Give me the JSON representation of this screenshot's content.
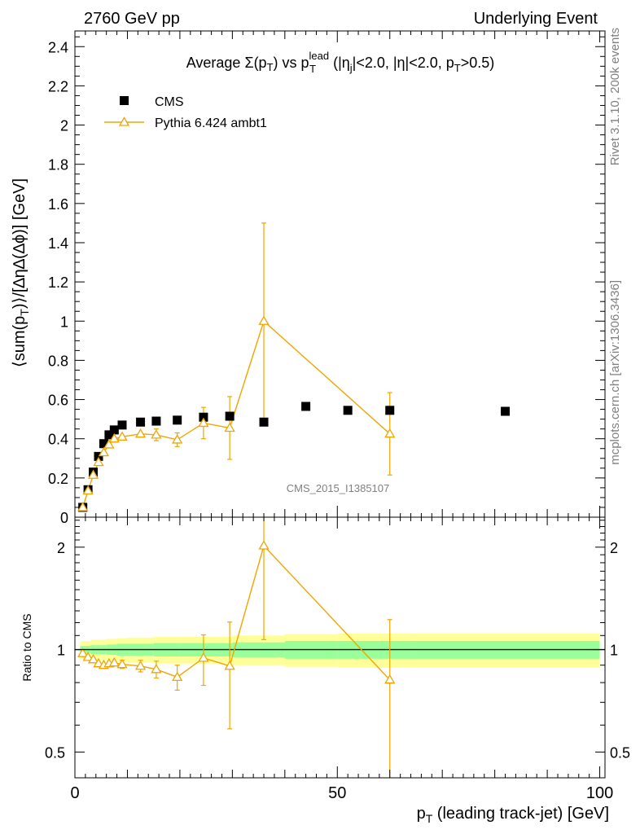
{
  "header": {
    "left": "2760 GeV pp",
    "right": "Underlying Event"
  },
  "side_text": {
    "rivet": "Rivet 3.1.10,  200k events",
    "mcplots": "mcplots.cern.ch [arXiv:1306.3436]"
  },
  "watermark": "CMS_2015_I1385107",
  "colors": {
    "mc": "#f0a500",
    "band_inner": "#99ff99",
    "band_outer": "#ffff99",
    "data": "#000000"
  },
  "chart_data": [
    {
      "type": "scatter",
      "title": {
        "pre": "Average ",
        "sigma": "Σ(p",
        "sigma_sub": "T",
        "sigma_close": ")",
        "vs": " vs p",
        "lead_sup": "lead",
        "lead_sub": "T",
        "eta_open": " (|η",
        "eta_sub": "j",
        "cuts": "|<2.0, |η|<2.0, p",
        "pt_sub": "T",
        "pt_cut": ">0.5)"
      },
      "ylabel": {
        "part1": "⟨sum(p",
        "sub": "T",
        "part2": ")⟩/[∆η∆(∆ϕ)] [GeV]"
      },
      "xlim": [
        0,
        101
      ],
      "ylim": [
        0,
        2.48
      ],
      "y_ticks": [
        {
          "v": 0,
          "label": "0"
        },
        {
          "v": 0.2,
          "label": "0.2"
        },
        {
          "v": 0.4,
          "label": "0.4"
        },
        {
          "v": 0.6,
          "label": "0.6"
        },
        {
          "v": 0.8,
          "label": "0.8"
        },
        {
          "v": 1.0,
          "label": "1"
        },
        {
          "v": 1.2,
          "label": "1.2"
        },
        {
          "v": 1.4,
          "label": "1.4"
        },
        {
          "v": 1.6,
          "label": "1.6"
        },
        {
          "v": 1.8,
          "label": "1.8"
        },
        {
          "v": 2.0,
          "label": "2"
        },
        {
          "v": 2.2,
          "label": "2.2"
        },
        {
          "v": 2.4,
          "label": "2.4"
        }
      ],
      "legend": [
        {
          "name": "CMS",
          "marker": "square"
        },
        {
          "name": "Pythia 6.424 ambt1",
          "marker": "triangle"
        }
      ],
      "series": [
        {
          "name": "CMS",
          "x": [
            1.5,
            2.5,
            3.5,
            4.5,
            5.5,
            6.5,
            7.5,
            9.0,
            12.5,
            15.5,
            19.5,
            24.5,
            29.5,
            36.0,
            44.0,
            52.0,
            60.0,
            82.0
          ],
          "y": [
            0.05,
            0.14,
            0.23,
            0.31,
            0.375,
            0.42,
            0.445,
            0.47,
            0.485,
            0.49,
            0.495,
            0.51,
            0.515,
            0.485,
            0.565,
            0.545,
            0.545,
            0.54
          ]
        },
        {
          "name": "Pythia 6.424 ambt1",
          "x": [
            1.5,
            2.5,
            3.5,
            4.5,
            5.5,
            6.5,
            7.5,
            9.0,
            12.5,
            15.5,
            19.5,
            24.5,
            29.5,
            36.0,
            60.0
          ],
          "y": [
            0.05,
            0.135,
            0.215,
            0.28,
            0.33,
            0.37,
            0.4,
            0.41,
            0.425,
            0.42,
            0.395,
            0.48,
            0.455,
            1.0,
            0.425
          ],
          "err": [
            0.005,
            0.01,
            0.01,
            0.012,
            0.012,
            0.015,
            0.015,
            0.015,
            0.02,
            0.03,
            0.035,
            0.08,
            0.16,
            0.5,
            0.21
          ]
        }
      ]
    },
    {
      "type": "scatter",
      "ylabel": "Ratio to CMS",
      "xlabel": {
        "pre": "p",
        "sub": "T",
        "post": " (leading track-jet) [GeV]"
      },
      "xlim": [
        0,
        101
      ],
      "ylim": [
        0.42,
        2.45
      ],
      "log_y": true,
      "y_ticks": [
        {
          "v": 0.5,
          "label": "0.5"
        },
        {
          "v": 1.0,
          "label": "1"
        },
        {
          "v": 2.0,
          "label": "2"
        }
      ],
      "x_ticks": [
        {
          "v": 0,
          "label": "0"
        },
        {
          "v": 50,
          "label": "50"
        },
        {
          "v": 100,
          "label": "100"
        }
      ],
      "bands": {
        "edges": [
          1,
          2,
          3,
          4,
          5,
          6,
          7,
          8,
          10,
          15,
          20,
          30,
          40,
          50,
          65,
          100
        ],
        "inner": [
          0.025,
          0.025,
          0.03,
          0.03,
          0.03,
          0.035,
          0.035,
          0.04,
          0.04,
          0.045,
          0.045,
          0.05,
          0.06,
          0.06,
          0.06
        ],
        "outer": [
          0.06,
          0.06,
          0.07,
          0.07,
          0.07,
          0.075,
          0.075,
          0.08,
          0.085,
          0.09,
          0.09,
          0.1,
          0.11,
          0.115,
          0.115
        ]
      },
      "series": [
        {
          "name": "Pythia 6.424 ambt1",
          "x": [
            1.5,
            2.5,
            3.5,
            4.5,
            5.5,
            6.5,
            7.5,
            9.0,
            12.5,
            15.5,
            19.5,
            24.5,
            29.5,
            36.0,
            60.0
          ],
          "y": [
            0.975,
            0.95,
            0.935,
            0.91,
            0.9,
            0.91,
            0.915,
            0.905,
            0.895,
            0.875,
            0.83,
            0.945,
            0.895,
            2.02,
            0.815
          ],
          "err": [
            0.01,
            0.015,
            0.015,
            0.02,
            0.02,
            0.02,
            0.02,
            0.025,
            0.035,
            0.05,
            0.07,
            0.16,
            0.31,
            0.95,
            0.41
          ]
        }
      ]
    }
  ]
}
